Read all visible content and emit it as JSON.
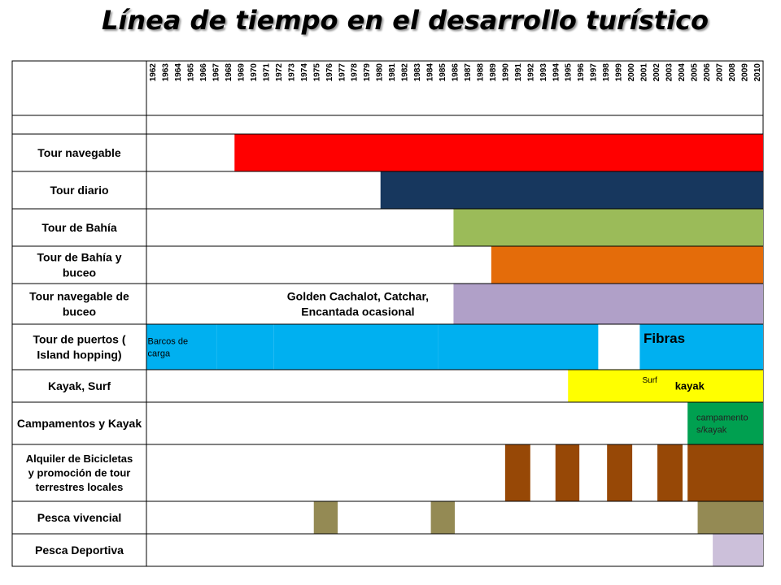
{
  "title": "Línea de tiempo en el desarrollo turístico",
  "chart_data": {
    "type": "table",
    "years": [
      "1962",
      "1963",
      "1964",
      "1965",
      "1966",
      "1967",
      "1968",
      "1969",
      "1970",
      "1971",
      "1972",
      "1973",
      "1974",
      "1975",
      "1976",
      "1977",
      "1978",
      "1979",
      "1980",
      "1981",
      "1982",
      "1983",
      "1984",
      "1985",
      "1986",
      "1987",
      "1988",
      "1989",
      "1990",
      "1991",
      "1992",
      "1993",
      "1994",
      "1995",
      "1996",
      "1997",
      "1998",
      "1999",
      "2000",
      "2001",
      "2002",
      "2003",
      "2004",
      "2005",
      "2006",
      "2007",
      "2008",
      "2009",
      "2010"
    ],
    "colors": {
      "red": "#ff0000",
      "navy": "#17375e",
      "green": "#9bbb59",
      "orange": "#e46c0a",
      "lavender": "#b0a0c8",
      "cyan": "#00b0f0",
      "yellow": "#ffff00",
      "teal": "#00a050",
      "brown": "#974806",
      "olive": "#948a54",
      "lilac": "#ccc0da"
    },
    "rows": [
      {
        "label": "Tour navegable",
        "bars": [
          {
            "start": 1969,
            "end": 2010,
            "color": "#ff0000"
          }
        ],
        "notes": []
      },
      {
        "label": "Tour diario",
        "bars": [
          {
            "start": 1980.6,
            "end": 2010,
            "color": "#17375e"
          }
        ],
        "notes": []
      },
      {
        "label": "Tour de Bahía",
        "bars": [
          {
            "start": 1986.4,
            "end": 2010,
            "color": "#9bbb59"
          }
        ],
        "notes": []
      },
      {
        "label": "Tour de Bahía y buceo",
        "bars": [
          {
            "start": 1989.4,
            "end": 2010,
            "color": "#e46c0a"
          }
        ],
        "notes": []
      },
      {
        "label": "Tour navegable de buceo",
        "bars": [
          {
            "start": 1986.4,
            "end": 2010,
            "color": "#b0a0c8"
          }
        ],
        "notes": [
          {
            "text": "Golden Cachalot, Catchar,",
            "year": 1978.8,
            "line": 0,
            "size": 14,
            "anchor": "middle"
          },
          {
            "text": "Encantada ocasional",
            "year": 1978.8,
            "line": 1,
            "size": 14,
            "anchor": "middle"
          }
        ]
      },
      {
        "label": "Tour de puertos ( Island hopping)",
        "bars": [
          {
            "start": 1962,
            "end": 1966.6,
            "color": "#00b0f0"
          },
          {
            "start": 1967.6,
            "end": 1969.2,
            "color": "#00b0f0"
          },
          {
            "start": 1970.1,
            "end": 1971.1,
            "color": "#00b0f0"
          },
          {
            "start": 1972.1,
            "end": 1974.2,
            "color": "#00b0f0"
          },
          {
            "start": 1975.1,
            "end": 1976.2,
            "color": "#00b0f0"
          },
          {
            "start": 1977.1,
            "end": 1979.2,
            "color": "#00b0f0"
          },
          {
            "start": 1980.1,
            "end": 1981.2,
            "color": "#00b0f0"
          },
          {
            "start": 1982.1,
            "end": 1984.2,
            "color": "#00b0f0"
          },
          {
            "start": 1985.2,
            "end": 1987.2,
            "color": "#00b0f0"
          },
          {
            "start": 1988.1,
            "end": 1989.3,
            "color": "#00b0f0"
          },
          {
            "start": 1990.1,
            "end": 1991.3,
            "color": "#00b0f0"
          },
          {
            "start": 1992.1,
            "end": 1993.3,
            "color": "#00b0f0"
          },
          {
            "start": 1994.1,
            "end": 1995.3,
            "color": "#00b0f0"
          },
          {
            "start": 1996.1,
            "end": 1996.9,
            "color": "#00b0f0"
          },
          {
            "start": 2001.2,
            "end": 2010,
            "color": "#00b0f0"
          }
        ],
        "notes": [
          {
            "text": "Barcos de",
            "year": 1962.1,
            "line": 0,
            "size": 11,
            "anchor": "start"
          },
          {
            "text": "carga",
            "year": 1962.1,
            "line": 1,
            "size": 11,
            "anchor": "start"
          },
          {
            "text": "Fibras",
            "year": 2001.5,
            "line": -1,
            "size": 17,
            "anchor": "start"
          }
        ]
      },
      {
        "label": "Kayak, Surf",
        "bars": [
          {
            "start": 1995.5,
            "end": 2010,
            "color": "#ffff00"
          }
        ],
        "notes": [
          {
            "text": "Surf",
            "year": 2001.4,
            "line": -1,
            "size": 10,
            "anchor": "start"
          },
          {
            "text": "kayak",
            "year": 2004.0,
            "line": 0,
            "size": 13,
            "anchor": "start"
          }
        ]
      },
      {
        "label": "Campamentos y Kayak",
        "bars": [
          {
            "start": 2005.0,
            "end": 2010,
            "color": "#00a050"
          }
        ],
        "notes": [
          {
            "text": "campamento",
            "year": 2005.7,
            "line": 0,
            "size": 11,
            "anchor": "start"
          },
          {
            "text": "s/kayak",
            "year": 2005.7,
            "line": 1,
            "size": 11,
            "anchor": "start"
          }
        ]
      },
      {
        "label": "Alquiler de Bicicletas y promoción de tour terrestres locales",
        "bars": [
          {
            "start": 1990.5,
            "end": 1991.5,
            "color": "#974806"
          },
          {
            "start": 1994.5,
            "end": 1995.4,
            "color": "#974806"
          },
          {
            "start": 1998.6,
            "end": 1999.6,
            "color": "#974806"
          },
          {
            "start": 2002.6,
            "end": 2003.6,
            "color": "#974806"
          },
          {
            "start": 2005.0,
            "end": 2010,
            "color": "#974806"
          }
        ],
        "notes": []
      },
      {
        "label": "Pesca vivencial",
        "bars": [
          {
            "start": 1975.3,
            "end": 1976.2,
            "color": "#948a54"
          },
          {
            "start": 1984.6,
            "end": 1985.5,
            "color": "#948a54"
          },
          {
            "start": 2005.8,
            "end": 2010,
            "color": "#948a54"
          }
        ],
        "notes": []
      },
      {
        "label": "Pesca Deportiva",
        "bars": [
          {
            "start": 2007.0,
            "end": 2010,
            "color": "#ccc0da"
          }
        ],
        "notes": []
      }
    ]
  }
}
